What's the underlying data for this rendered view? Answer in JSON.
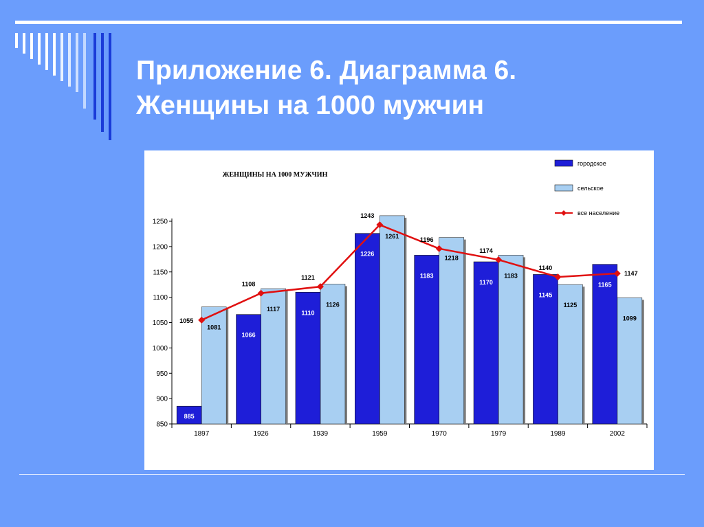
{
  "slide": {
    "title_line1": "Приложение 6. Диаграмма 6.",
    "title_line2": "Женщины на 1000 мужчин"
  },
  "colors": {
    "background": "#6b9dfc",
    "urban_bar": "#1e1ed8",
    "rural_bar": "#a8cff2",
    "total_line": "#e01010"
  },
  "chart_data": {
    "type": "bar",
    "title": "ЖЕНЩИНЫ НА 1000 МУЖЧИН",
    "categories": [
      "1897",
      "1926",
      "1939",
      "1959",
      "1970",
      "1979",
      "1989",
      "2002"
    ],
    "series": [
      {
        "name": "городское",
        "type": "bar",
        "values": [
          885,
          1066,
          1110,
          1226,
          1183,
          1170,
          1145,
          1165
        ]
      },
      {
        "name": "сельское",
        "type": "bar",
        "values": [
          1081,
          1117,
          1126,
          1261,
          1218,
          1183,
          1125,
          1099
        ]
      },
      {
        "name": "все население",
        "type": "line",
        "values": [
          1055,
          1108,
          1121,
          1243,
          1196,
          1174,
          1140,
          1147
        ]
      }
    ],
    "ylim": [
      850,
      1250
    ],
    "yticks": [
      "850",
      "900",
      "950",
      "1000",
      "1050",
      "1100",
      "1150",
      "1200",
      "1250"
    ],
    "grid": false,
    "legend_position": "top-right",
    "xlabel": "",
    "ylabel": ""
  }
}
